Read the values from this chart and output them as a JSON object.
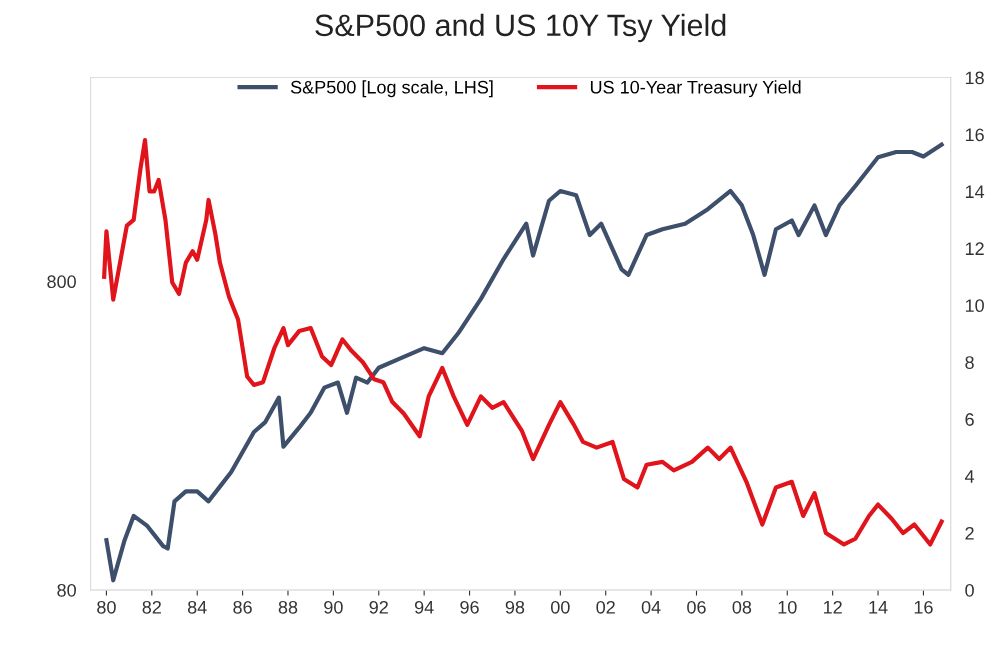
{
  "chart_data": {
    "type": "line",
    "title": "S&P500 and US 10Y Tsy Yield",
    "log": "y",
    "legend": "top",
    "grid": false,
    "xlim": [
      1979.3,
      2017.2
    ],
    "xticks": [
      {
        "value": 1980,
        "label": "80"
      },
      {
        "value": 1982,
        "label": "82"
      },
      {
        "value": 1984,
        "label": "84"
      },
      {
        "value": 1986,
        "label": "86"
      },
      {
        "value": 1988,
        "label": "88"
      },
      {
        "value": 1990,
        "label": "90"
      },
      {
        "value": 1992,
        "label": "92"
      },
      {
        "value": 1994,
        "label": "94"
      },
      {
        "value": 1996,
        "label": "96"
      },
      {
        "value": 1998,
        "label": "98"
      },
      {
        "value": 2000,
        "label": "00"
      },
      {
        "value": 2002,
        "label": "02"
      },
      {
        "value": 2004,
        "label": "04"
      },
      {
        "value": 2006,
        "label": "06"
      },
      {
        "value": 2008,
        "label": "08"
      },
      {
        "value": 2010,
        "label": "10"
      },
      {
        "value": 2012,
        "label": "12"
      },
      {
        "value": 2014,
        "label": "14"
      },
      {
        "value": 2016,
        "label": "16"
      }
    ],
    "ylim": [
      80,
      3660
    ],
    "yticks": [
      80,
      800
    ],
    "y2lim": [
      0,
      18
    ],
    "y2ticks": [
      0,
      2,
      4,
      6,
      8,
      10,
      12,
      14,
      16,
      18
    ],
    "series": [
      {
        "name": "S&P500 [Log scale, LHS]",
        "color": "#3d4f6b",
        "x": [
          1980.0,
          1980.3,
          1980.8,
          1981.2,
          1981.8,
          1982.5,
          1982.7,
          1983.0,
          1983.5,
          1984.0,
          1984.5,
          1985.0,
          1985.5,
          1986.0,
          1986.5,
          1987.0,
          1987.6,
          1987.8,
          1988.5,
          1989.0,
          1989.6,
          1990.2,
          1990.6,
          1991.0,
          1991.5,
          1992.0,
          1993.0,
          1994.0,
          1994.8,
          1995.5,
          1996.5,
          1997.5,
          1998.5,
          1998.8,
          1999.5,
          2000.0,
          2000.7,
          2001.3,
          2001.8,
          2002.7,
          2003.0,
          2003.8,
          2004.5,
          2005.5,
          2006.5,
          2007.5,
          2008.0,
          2008.5,
          2009.0,
          2009.5,
          2010.2,
          2010.5,
          2011.2,
          2011.7,
          2012.3,
          2013.0,
          2014.0,
          2014.8,
          2015.5,
          2016.0,
          2016.8
        ],
        "values": [
          116,
          86,
          116,
          139,
          129,
          111,
          109,
          155,
          167,
          167,
          155,
          173,
          193,
          224,
          260,
          280,
          336,
          233,
          269,
          300,
          362,
          376,
          300,
          390,
          376,
          420,
          452,
          486,
          468,
          543,
          702,
          945,
          1230,
          970,
          1460,
          1570,
          1520,
          1130,
          1230,
          875,
          840,
          1130,
          1180,
          1230,
          1370,
          1570,
          1410,
          1130,
          840,
          1180,
          1260,
          1130,
          1410,
          1130,
          1410,
          1630,
          2020,
          2100,
          2100,
          2030,
          2220
        ]
      },
      {
        "name": "US 10-Year Treasury Yield",
        "color": "#e0141a",
        "axis": "y2",
        "x": [
          1979.9,
          1980.0,
          1980.3,
          1980.6,
          1980.9,
          1981.2,
          1981.5,
          1981.7,
          1981.9,
          1982.1,
          1982.3,
          1982.6,
          1982.9,
          1983.2,
          1983.5,
          1983.8,
          1984.0,
          1984.4,
          1984.5,
          1984.8,
          1985.0,
          1985.4,
          1985.8,
          1986.2,
          1986.5,
          1986.9,
          1987.4,
          1987.8,
          1988.0,
          1988.5,
          1989.0,
          1989.5,
          1989.9,
          1990.4,
          1990.8,
          1991.3,
          1991.8,
          1992.2,
          1992.6,
          1993.1,
          1993.8,
          1994.2,
          1994.8,
          1995.3,
          1995.9,
          1996.5,
          1997.0,
          1997.5,
          1998.3,
          1998.8,
          1999.5,
          2000.0,
          2000.6,
          2001.0,
          2001.6,
          2002.3,
          2002.8,
          2003.4,
          2003.8,
          2004.5,
          2005.0,
          2005.8,
          2006.5,
          2007.0,
          2007.5,
          2008.2,
          2008.9,
          2009.5,
          2010.2,
          2010.7,
          2011.2,
          2011.7,
          2012.5,
          2013.0,
          2013.6,
          2014.0,
          2014.6,
          2015.1,
          2015.6,
          2016.3,
          2016.8
        ],
        "values": [
          11.0,
          12.6,
          10.2,
          11.5,
          12.8,
          13.0,
          14.8,
          15.8,
          14.0,
          14.0,
          14.4,
          13.0,
          10.8,
          10.4,
          11.5,
          11.9,
          11.6,
          13.0,
          13.7,
          12.5,
          11.5,
          10.3,
          9.5,
          7.5,
          7.2,
          7.3,
          8.5,
          9.2,
          8.6,
          9.1,
          9.2,
          8.2,
          7.9,
          8.8,
          8.4,
          8.0,
          7.4,
          7.3,
          6.6,
          6.2,
          5.4,
          6.8,
          7.8,
          6.8,
          5.8,
          6.8,
          6.4,
          6.6,
          5.6,
          4.6,
          5.8,
          6.6,
          5.8,
          5.2,
          5.0,
          5.2,
          3.9,
          3.6,
          4.4,
          4.5,
          4.2,
          4.5,
          5.0,
          4.6,
          5.0,
          3.8,
          2.3,
          3.6,
          3.8,
          2.6,
          3.4,
          2.0,
          1.6,
          1.8,
          2.6,
          3.0,
          2.5,
          2.0,
          2.3,
          1.6,
          2.4
        ]
      }
    ]
  }
}
